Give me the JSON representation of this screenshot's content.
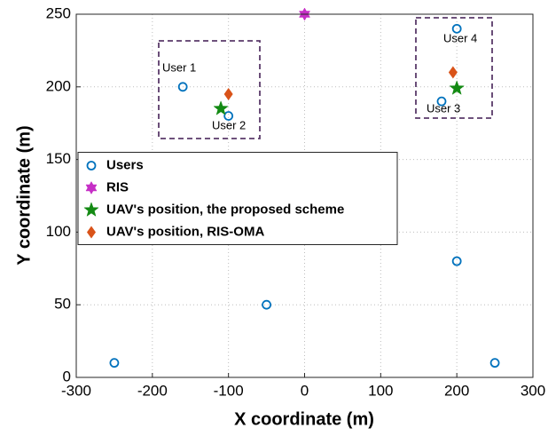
{
  "chart_data": {
    "type": "scatter",
    "xlabel": "X coordinate (m)",
    "ylabel": "Y coordinate (m)",
    "xlim": [
      -300,
      300
    ],
    "ylim": [
      0,
      250
    ],
    "xticks": [
      -300,
      -200,
      -100,
      0,
      100,
      200,
      300
    ],
    "yticks": [
      0,
      50,
      100,
      150,
      200,
      250
    ],
    "grid": true,
    "legend": "west",
    "series": [
      {
        "name": "Users",
        "color": "#0072bd",
        "marker": "circle",
        "x": [
          -250,
          -50,
          200,
          250,
          -160,
          -100,
          180,
          200
        ],
        "values": [
          10,
          50,
          80,
          10,
          200,
          180,
          190,
          240
        ]
      },
      {
        "name": "RIS",
        "color": "#c62fc6",
        "marker": "hexagram",
        "x": [
          0
        ],
        "values": [
          250
        ]
      },
      {
        "name": "UAV's position, the proposed scheme",
        "color": "#138a13",
        "marker": "star",
        "x": [
          -110,
          200
        ],
        "values": [
          185,
          199
        ]
      },
      {
        "name": "UAV's position, RIS-OMA",
        "color": "#d95319",
        "marker": "diamond",
        "x": [
          -100,
          195
        ],
        "values": [
          195,
          210
        ]
      }
    ],
    "annotations": [
      "User 1",
      "User 2",
      "User 3",
      "User 4"
    ]
  }
}
